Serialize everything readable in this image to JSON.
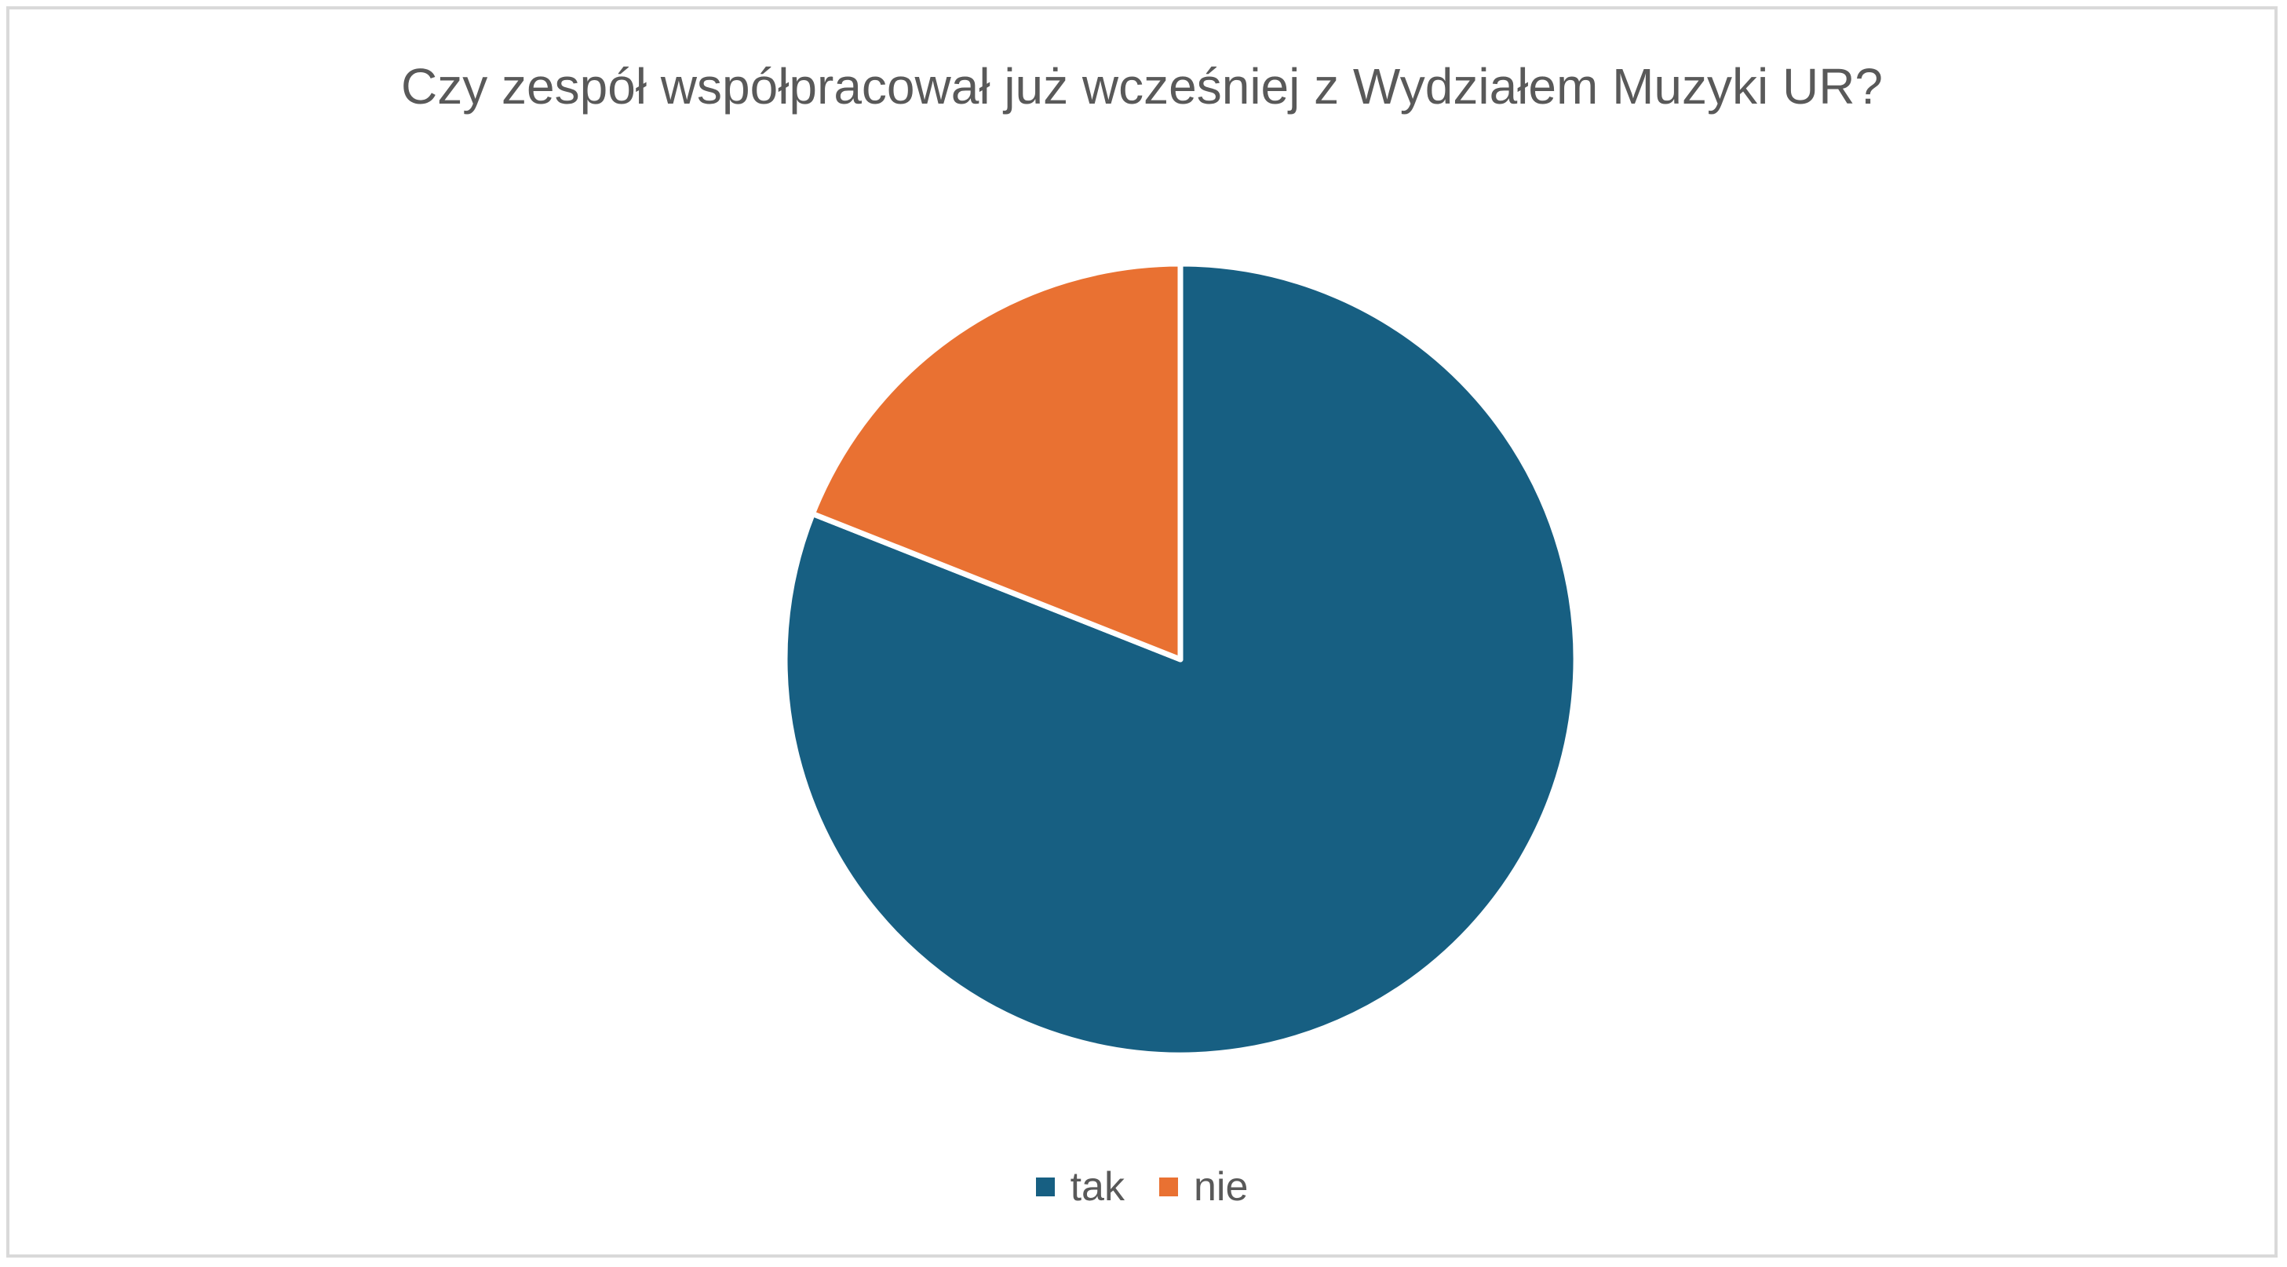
{
  "chart_data": {
    "type": "pie",
    "title": "Czy zespół współpracował już wcześniej z Wydziałem Muzyki UR?",
    "categories": [
      "tak",
      "nie"
    ],
    "values": [
      81,
      19
    ],
    "colors": [
      "#175F82",
      "#E97132"
    ],
    "slice_border_color": "#ffffff",
    "start_angle_deg": 0,
    "direction": "clockwise",
    "legend_position": "bottom"
  }
}
